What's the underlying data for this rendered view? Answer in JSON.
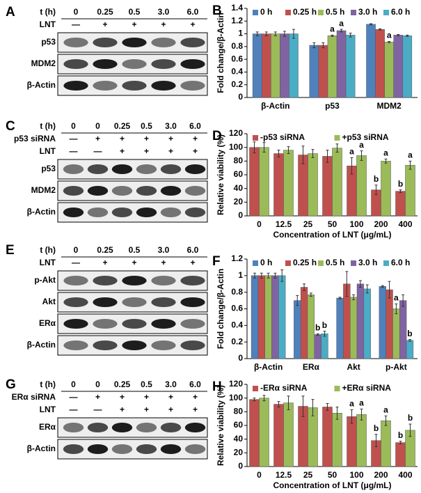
{
  "blots": [
    {
      "panel": "A",
      "rows": [
        {
          "label": "t (h)",
          "values": [
            "0",
            "0.25",
            "0.5",
            "3.0",
            "6.0"
          ]
        },
        {
          "label": "LNT",
          "values": [
            "—",
            "+",
            "+",
            "+",
            "+"
          ]
        }
      ],
      "bands": [
        "p53",
        "MDM2",
        "β-Actin"
      ]
    },
    {
      "panel": "C",
      "rows": [
        {
          "label": "t (h)",
          "values": [
            "0",
            "0",
            "0.25",
            "0.5",
            "3.0",
            "6.0"
          ]
        },
        {
          "label": "p53 siRNA",
          "values": [
            "—",
            "+",
            "+",
            "+",
            "+",
            "+"
          ]
        },
        {
          "label": "LNT",
          "values": [
            "—",
            "—",
            "+",
            "+",
            "+",
            "+"
          ]
        }
      ],
      "bands": [
        "p53",
        "MDM2",
        "β-Actin"
      ]
    },
    {
      "panel": "E",
      "rows": [
        {
          "label": "t (h)",
          "values": [
            "0",
            "0.25",
            "0.5",
            "3.0",
            "6.0"
          ]
        },
        {
          "label": "LNT",
          "values": [
            "—",
            "+",
            "+",
            "+",
            "+"
          ]
        }
      ],
      "bands": [
        "p-Akt",
        "Akt",
        "ERα",
        "β-Actin"
      ]
    },
    {
      "panel": "G",
      "rows": [
        {
          "label": "t (h)",
          "values": [
            "0",
            "0",
            "0.25",
            "0.5",
            "3.0",
            "6.0"
          ]
        },
        {
          "label": "ERα siRNA",
          "values": [
            "—",
            "+",
            "+",
            "+",
            "+",
            "+"
          ]
        },
        {
          "label": "LNT",
          "values": [
            "—",
            "—",
            "+",
            "+",
            "+",
            "+"
          ]
        }
      ],
      "bands": [
        "ERα",
        "β-Actin"
      ]
    }
  ],
  "chart_data": [
    {
      "type": "bar",
      "panel": "B",
      "y_label": "Fold change/β-Actin",
      "categories": [
        "β-Actin",
        "p53",
        "MDM2"
      ],
      "ylim": [
        0,
        1.4
      ],
      "yticks": [
        0,
        0.2,
        0.4,
        0.6,
        0.8,
        1,
        1.2,
        1.4
      ],
      "series": [
        {
          "name": "0 h",
          "color": "#4f81bd",
          "values": [
            1,
            0.82,
            1.15
          ],
          "errors": [
            0.03,
            0.04,
            0.01
          ],
          "labels": [
            null,
            null,
            null
          ]
        },
        {
          "name": "0.25 h",
          "color": "#c0504d",
          "values": [
            1,
            0.82,
            1.07
          ],
          "errors": [
            0.03,
            0.04,
            0.01
          ],
          "labels": [
            null,
            null,
            null
          ]
        },
        {
          "name": "0.5 h",
          "color": "#9bbb59",
          "values": [
            1,
            0.97,
            0.87
          ],
          "errors": [
            0.03,
            0.01,
            0.01
          ],
          "labels": [
            null,
            "a",
            "a"
          ]
        },
        {
          "name": "3.0 h",
          "color": "#8064a2",
          "values": [
            1,
            1.05,
            0.98
          ],
          "errors": [
            0.04,
            0.02,
            0.01
          ],
          "labels": [
            null,
            "a",
            null
          ]
        },
        {
          "name": "6.0 h",
          "color": "#4bacc6",
          "values": [
            1,
            0.98,
            0.97
          ],
          "errors": [
            0.07,
            0.03,
            0.01
          ],
          "labels": [
            null,
            null,
            null
          ]
        }
      ]
    },
    {
      "type": "bar",
      "panel": "D",
      "y_label": "Relative viability (%)",
      "x_label": "Concentration of LNT (μg/mL)",
      "categories": [
        "0",
        "12.5",
        "25",
        "50",
        "100",
        "200",
        "400"
      ],
      "ylim": [
        0,
        120
      ],
      "yticks": [
        0,
        20,
        40,
        60,
        80,
        100,
        120
      ],
      "series": [
        {
          "name": "-p53 siRNA",
          "color": "#c0504d",
          "values": [
            100,
            91,
            89,
            87,
            73,
            38,
            36
          ],
          "errors": [
            8,
            5,
            13,
            9,
            12,
            7,
            2
          ],
          "labels": [
            null,
            null,
            null,
            null,
            "a",
            "b",
            "b"
          ]
        },
        {
          "name": "+p53 siRNA",
          "color": "#9bbb59",
          "values": [
            100,
            96,
            91,
            99,
            88,
            80,
            74
          ],
          "errors": [
            7,
            5,
            6,
            6,
            7,
            3,
            6
          ],
          "labels": [
            null,
            null,
            null,
            null,
            "a",
            "a",
            "a"
          ]
        }
      ]
    },
    {
      "type": "bar",
      "panel": "F",
      "y_label": "Fold change/β-Actin",
      "categories": [
        "β-Actin",
        "ERα",
        "Akt",
        "p-Akt"
      ],
      "ylim": [
        0,
        1.2
      ],
      "yticks": [
        0,
        0.2,
        0.4,
        0.6,
        0.8,
        1,
        1.2
      ],
      "series": [
        {
          "name": "0 h",
          "color": "#4f81bd",
          "values": [
            1,
            0.7,
            0.73,
            0.87
          ],
          "errors": [
            0.03,
            0.06,
            0.01,
            0.01
          ],
          "labels": [
            null,
            null,
            null,
            null
          ]
        },
        {
          "name": "0.25 h",
          "color": "#c0504d",
          "values": [
            1,
            0.86,
            0.9,
            0.83
          ],
          "errors": [
            0.03,
            0.04,
            0.15,
            0.1
          ],
          "labels": [
            null,
            null,
            null,
            null
          ]
        },
        {
          "name": "0.5 h",
          "color": "#9bbb59",
          "values": [
            1,
            0.77,
            0.74,
            0.6
          ],
          "errors": [
            0.03,
            0.02,
            0.03,
            0.06
          ],
          "labels": [
            null,
            null,
            null,
            "a"
          ]
        },
        {
          "name": "3.0 h",
          "color": "#8064a2",
          "values": [
            1,
            0.29,
            0.9,
            0.7
          ],
          "errors": [
            0.03,
            0.01,
            0.04,
            0.07
          ],
          "labels": [
            null,
            "b",
            null,
            null
          ]
        },
        {
          "name": "6.0 h",
          "color": "#4bacc6",
          "values": [
            1,
            0.3,
            0.84,
            0.22
          ],
          "errors": [
            0.07,
            0.03,
            0.05,
            0.01
          ],
          "labels": [
            null,
            "b",
            null,
            "b"
          ]
        }
      ]
    },
    {
      "type": "bar",
      "panel": "H",
      "y_label": "Relative viability (%)",
      "x_label": "Concentration of LNT (μg/mL)",
      "categories": [
        "0",
        "12.5",
        "25",
        "50",
        "100",
        "200",
        "400"
      ],
      "ylim": [
        0,
        120
      ],
      "yticks": [
        0,
        20,
        40,
        60,
        80,
        100,
        120
      ],
      "series": [
        {
          "name": "-ERα siRNA",
          "color": "#c0504d",
          "values": [
            98,
            91,
            88,
            87,
            73,
            38,
            35
          ],
          "errors": [
            2,
            4,
            15,
            5,
            10,
            9,
            2
          ],
          "labels": [
            null,
            null,
            null,
            null,
            "a",
            "b",
            "b"
          ]
        },
        {
          "name": "+ERα siRNA",
          "color": "#9bbb59",
          "values": [
            100,
            93,
            86,
            78,
            76,
            67,
            53
          ],
          "errors": [
            4,
            10,
            12,
            9,
            8,
            7,
            9
          ],
          "labels": [
            null,
            null,
            null,
            null,
            "a",
            "a",
            "b"
          ]
        }
      ]
    }
  ]
}
